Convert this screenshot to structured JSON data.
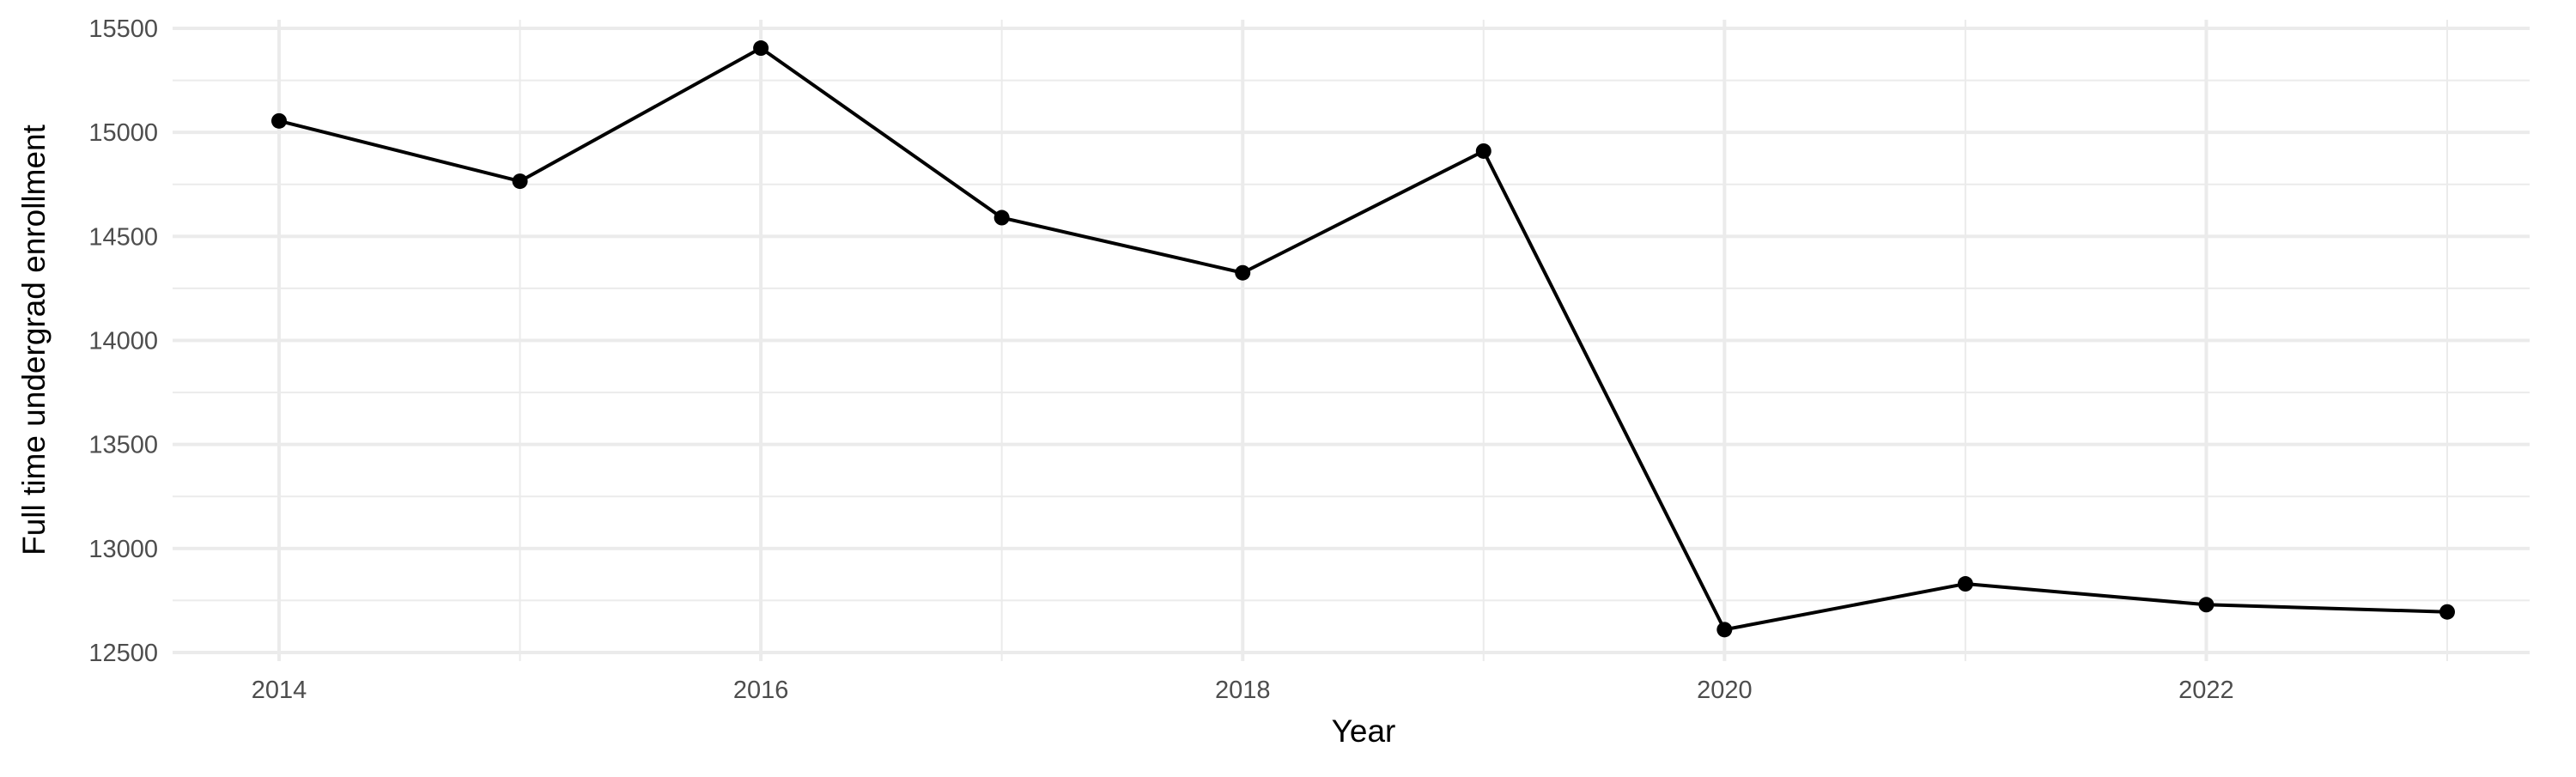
{
  "chart_data": {
    "type": "line",
    "title": "",
    "xlabel": "Year",
    "ylabel": "Full time undergrad enrollment",
    "x": [
      2014,
      2015,
      2016,
      2017,
      2018,
      2019,
      2020,
      2021,
      2022,
      2023
    ],
    "series": [
      {
        "values": [
          15055,
          14765,
          15405,
          14590,
          14325,
          14910,
          12610,
          12830,
          12730,
          12695
        ],
        "color": "#000000"
      }
    ],
    "x_ticks": [
      "2014",
      "2016",
      "2018",
      "2020",
      "2022"
    ],
    "y_ticks": [
      "12500",
      "13000",
      "13500",
      "14000",
      "14500",
      "15000",
      "15500"
    ],
    "xlim": [
      2013.55,
      2023.45
    ],
    "ylim": [
      12500,
      15500
    ],
    "grid": true,
    "markers": true,
    "grid_color": "#ebebeb"
  }
}
